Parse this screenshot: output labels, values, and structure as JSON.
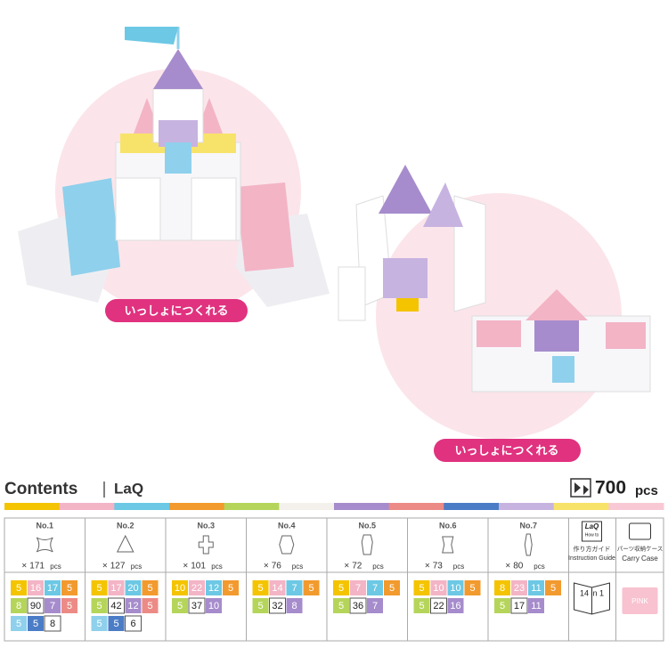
{
  "photos": [
    {
      "label": "いっしょにつくれる"
    },
    {
      "label": "いっしょにつくれる"
    }
  ],
  "contents": {
    "title": "Contents",
    "brand": "LaQ",
    "total": 700,
    "total_unit": "pcs",
    "count_prefix": "×",
    "count_unit": "pcs",
    "strip": [
      "#f4c400",
      "#f3b4c6",
      "#6cc8e4",
      "#f29a2e",
      "#b5d55a",
      "#f4f1ec",
      "#a68ccc",
      "#ec8a86",
      "#4b7cc6",
      "#c7b3e0",
      "#f7e36a",
      "#f8c9d4"
    ],
    "pieces": [
      {
        "name": "No.1",
        "count": 171,
        "rows": [
          [
            {
              "value": 5,
              "color": "#f4c400"
            },
            {
              "value": 16,
              "color": "#f3b4c6"
            },
            {
              "value": 17,
              "color": "#6cc8e4"
            },
            {
              "value": 5,
              "color": "#f29a2e"
            }
          ],
          [
            {
              "value": 8,
              "color": "#b5d55a"
            },
            {
              "value": 90,
              "color": "#ffffff"
            },
            {
              "value": 7,
              "color": "#a68ccc"
            },
            {
              "value": 5,
              "color": "#ec8a86"
            }
          ],
          [
            {
              "value": 5,
              "color": "#8fd0ec"
            },
            {
              "value": 5,
              "color": "#4b7cc6"
            },
            {
              "value": 8,
              "color": "#ffffff"
            }
          ]
        ]
      },
      {
        "name": "No.2",
        "count": 127,
        "rows": [
          [
            {
              "value": 5,
              "color": "#f4c400"
            },
            {
              "value": 17,
              "color": "#f3b4c6"
            },
            {
              "value": 20,
              "color": "#6cc8e4"
            },
            {
              "value": 5,
              "color": "#f29a2e"
            }
          ],
          [
            {
              "value": 5,
              "color": "#b5d55a"
            },
            {
              "value": 42,
              "color": "#ffffff"
            },
            {
              "value": 12,
              "color": "#a68ccc"
            },
            {
              "value": 5,
              "color": "#ec8a86"
            }
          ],
          [
            {
              "value": 5,
              "color": "#8fd0ec"
            },
            {
              "value": 5,
              "color": "#4b7cc6"
            },
            {
              "value": 6,
              "color": "#ffffff"
            }
          ]
        ]
      },
      {
        "name": "No.3",
        "count": 101,
        "rows": [
          [
            {
              "value": 10,
              "color": "#f4c400"
            },
            {
              "value": 22,
              "color": "#f3b4c6"
            },
            {
              "value": 12,
              "color": "#6cc8e4"
            },
            {
              "value": 5,
              "color": "#f29a2e"
            }
          ],
          [
            {
              "value": 5,
              "color": "#b5d55a"
            },
            {
              "value": 37,
              "color": "#ffffff"
            },
            {
              "value": 10,
              "color": "#a68ccc"
            }
          ]
        ]
      },
      {
        "name": "No.4",
        "count": 76,
        "rows": [
          [
            {
              "value": 5,
              "color": "#f4c400"
            },
            {
              "value": 14,
              "color": "#f3b4c6"
            },
            {
              "value": 7,
              "color": "#6cc8e4"
            },
            {
              "value": 5,
              "color": "#f29a2e"
            }
          ],
          [
            {
              "value": 5,
              "color": "#b5d55a"
            },
            {
              "value": 32,
              "color": "#ffffff"
            },
            {
              "value": 8,
              "color": "#a68ccc"
            }
          ]
        ]
      },
      {
        "name": "No.5",
        "count": 72,
        "rows": [
          [
            {
              "value": 5,
              "color": "#f4c400"
            },
            {
              "value": 7,
              "color": "#f3b4c6"
            },
            {
              "value": 7,
              "color": "#6cc8e4"
            },
            {
              "value": 5,
              "color": "#f29a2e"
            }
          ],
          [
            {
              "value": 5,
              "color": "#b5d55a"
            },
            {
              "value": 36,
              "color": "#ffffff"
            },
            {
              "value": 7,
              "color": "#a68ccc"
            }
          ]
        ]
      },
      {
        "name": "No.6",
        "count": 73,
        "rows": [
          [
            {
              "value": 5,
              "color": "#f4c400"
            },
            {
              "value": 10,
              "color": "#f3b4c6"
            },
            {
              "value": 10,
              "color": "#6cc8e4"
            },
            {
              "value": 5,
              "color": "#f29a2e"
            }
          ],
          [
            {
              "value": 5,
              "color": "#b5d55a"
            },
            {
              "value": 22,
              "color": "#ffffff"
            },
            {
              "value": 16,
              "color": "#a68ccc"
            }
          ]
        ]
      },
      {
        "name": "No.7",
        "count": 80,
        "rows": [
          [
            {
              "value": 8,
              "color": "#f4c400"
            },
            {
              "value": 23,
              "color": "#f3b4c6"
            },
            {
              "value": 11,
              "color": "#6cc8e4"
            },
            {
              "value": 5,
              "color": "#f29a2e"
            }
          ],
          [
            {
              "value": 5,
              "color": "#b5d55a"
            },
            {
              "value": 17,
              "color": "#ffffff"
            },
            {
              "value": 11,
              "color": "#a68ccc"
            }
          ]
        ]
      }
    ],
    "guide": {
      "icon_title": "LaQ",
      "icon_sub": "How to",
      "label_jp": "作り方ガイド",
      "label_en": "Instruction Guide",
      "badge": "14 in 1"
    },
    "case": {
      "label_jp": "パーツ収納ケース",
      "label_en": "Carry Case",
      "color_label": "PINK"
    }
  }
}
